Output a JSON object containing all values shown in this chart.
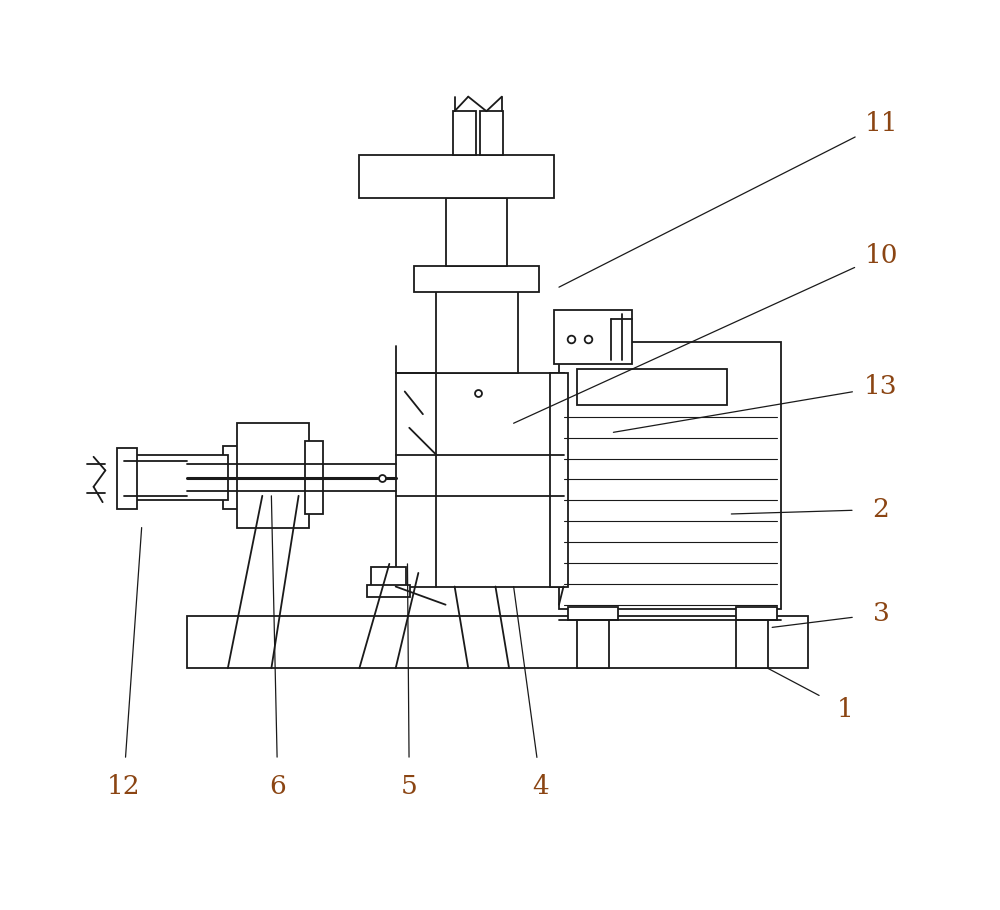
{
  "bg_color": "#ffffff",
  "line_color": "#1a1a1a",
  "label_color": "#8B4513",
  "fig_width": 10.0,
  "fig_height": 9.1,
  "lw": 1.3,
  "ann": {
    "11": {
      "lp": [
        0.92,
        0.865
      ],
      "le": [
        0.565,
        0.685
      ]
    },
    "10": {
      "lp": [
        0.92,
        0.72
      ],
      "le": [
        0.515,
        0.535
      ]
    },
    "13": {
      "lp": [
        0.92,
        0.575
      ],
      "le": [
        0.625,
        0.525
      ]
    },
    "2": {
      "lp": [
        0.92,
        0.44
      ],
      "le": [
        0.755,
        0.435
      ]
    },
    "3": {
      "lp": [
        0.92,
        0.325
      ],
      "le": [
        0.8,
        0.31
      ]
    },
    "1": {
      "lp": [
        0.88,
        0.22
      ],
      "le": [
        0.795,
        0.265
      ]
    },
    "12": {
      "lp": [
        0.085,
        0.135
      ],
      "le": [
        0.105,
        0.42
      ]
    },
    "6": {
      "lp": [
        0.255,
        0.135
      ],
      "le": [
        0.248,
        0.455
      ]
    },
    "5": {
      "lp": [
        0.4,
        0.135
      ],
      "le": [
        0.398,
        0.38
      ]
    },
    "4": {
      "lp": [
        0.545,
        0.135
      ],
      "le": [
        0.515,
        0.355
      ]
    }
  }
}
